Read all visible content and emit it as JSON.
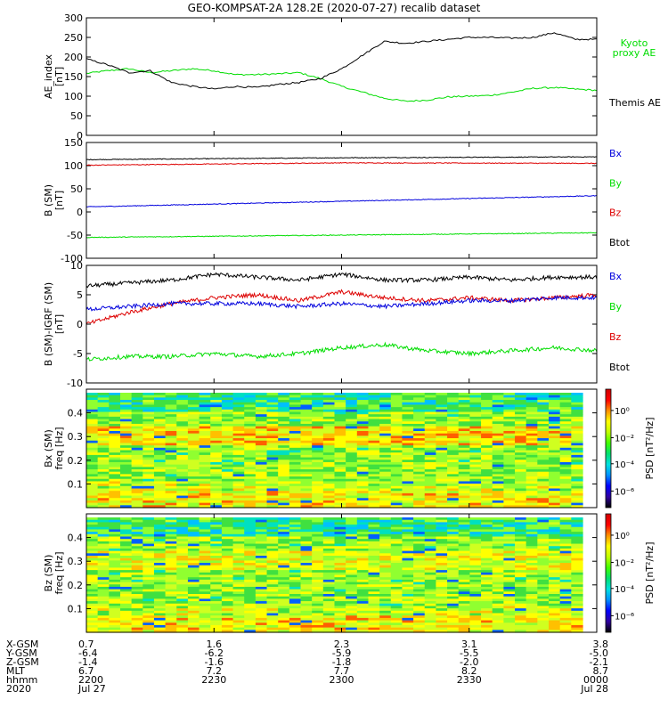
{
  "chart_data": {
    "title": "GEO-KOMPSAT-2A 128.2E (2020-07-27) recalib dataset",
    "x_axis": {
      "row_labels": [
        "X-GSM",
        "Y-GSM",
        "Z-GSM",
        "MLT",
        "hhmm",
        "2020"
      ],
      "tick_positions": [
        0,
        30,
        60,
        90,
        120
      ],
      "ticks": [
        {
          "values": [
            "0.7",
            "-6.4",
            "-1.4",
            "6.7",
            "2200",
            "Jul 27"
          ]
        },
        {
          "values": [
            "1.6",
            "-6.2",
            "-1.6",
            "7.2",
            "2230",
            ""
          ]
        },
        {
          "values": [
            "2.3",
            "-5.9",
            "-1.8",
            "7.7",
            "2300",
            ""
          ]
        },
        {
          "values": [
            "3.1",
            "-5.5",
            "-2.0",
            "8.2",
            "2330",
            ""
          ]
        },
        {
          "values": [
            "3.8",
            "-5.0",
            "-2.1",
            "8.7",
            "0000",
            "Jul 28"
          ]
        }
      ]
    },
    "panels": [
      {
        "type": "line",
        "ylabel": [
          "AE_index",
          "[nT]"
        ],
        "ylim": [
          0,
          300
        ],
        "yticks": [
          0,
          50,
          100,
          150,
          200,
          250,
          300
        ],
        "series": [
          {
            "name": "Kyoto\nproxy AE",
            "color": "#00dd00",
            "x": [
              0,
              5,
              10,
              15,
              20,
              25,
              30,
              35,
              40,
              45,
              50,
              55,
              60,
              65,
              70,
              75,
              80,
              85,
              90,
              95,
              100,
              105,
              110,
              115,
              120
            ],
            "y": [
              158,
              165,
              170,
              160,
              165,
              170,
              165,
              155,
              155,
              157,
              160,
              145,
              125,
              110,
              95,
              87,
              90,
              98,
              100,
              102,
              110,
              120,
              122,
              118,
              115
            ]
          },
          {
            "name": "Themis AE",
            "color": "#000000",
            "x": [
              0,
              5,
              10,
              15,
              20,
              25,
              30,
              35,
              40,
              45,
              50,
              55,
              60,
              65,
              70,
              75,
              80,
              85,
              90,
              95,
              100,
              105,
              110,
              115,
              120
            ],
            "y": [
              195,
              180,
              160,
              165,
              135,
              125,
              118,
              125,
              122,
              130,
              135,
              145,
              170,
              205,
              240,
              235,
              240,
              245,
              250,
              250,
              248,
              250,
              262,
              245,
              245
            ]
          }
        ]
      },
      {
        "type": "line",
        "ylabel": [
          "B (SM)",
          "[nT]"
        ],
        "ylim": [
          -100,
          150
        ],
        "yticks": [
          -100,
          -50,
          0,
          50,
          100,
          150
        ],
        "legend": [
          "Bx",
          "By",
          "Bz",
          "Btot"
        ],
        "series": [
          {
            "name": "Btot",
            "color": "#000000",
            "x": [
              0,
              60,
              120
            ],
            "y": [
              113,
              117,
              119
            ]
          },
          {
            "name": "Bz",
            "color": "#dd0000",
            "x": [
              0,
              60,
              120
            ],
            "y": [
              101,
              106,
              105
            ]
          },
          {
            "name": "Bx",
            "color": "#0000dd",
            "x": [
              0,
              60,
              120
            ],
            "y": [
              11,
              23,
              35
            ]
          },
          {
            "name": "By",
            "color": "#00dd00",
            "x": [
              0,
              60,
              120
            ],
            "y": [
              -55,
              -50,
              -45
            ]
          }
        ]
      },
      {
        "type": "line",
        "ylabel": [
          "B (SM)-IGRF (SM)",
          "[nT]"
        ],
        "ylim": [
          -10,
          10
        ],
        "yticks": [
          -10,
          -5,
          0,
          5,
          10
        ],
        "legend": [
          "Bx",
          "By",
          "Bz",
          "Btot"
        ],
        "series": [
          {
            "name": "Btot",
            "color": "#000000",
            "x": [
              0,
              10,
              20,
              30,
              40,
              50,
              60,
              70,
              80,
              90,
              100,
              110,
              120
            ],
            "y": [
              6.5,
              7.0,
              7.5,
              8.5,
              8.0,
              7.5,
              8.5,
              7.5,
              7.5,
              8.0,
              7.5,
              8.0,
              8.0
            ]
          },
          {
            "name": "Bz",
            "color": "#dd0000",
            "x": [
              0,
              10,
              20,
              30,
              40,
              50,
              60,
              70,
              80,
              90,
              100,
              110,
              120
            ],
            "y": [
              0,
              2.0,
              3.5,
              4.5,
              5.0,
              4.0,
              5.5,
              4.5,
              4.0,
              4.5,
              4.0,
              4.5,
              5.0
            ]
          },
          {
            "name": "Bx",
            "color": "#0000dd",
            "x": [
              0,
              10,
              20,
              30,
              40,
              50,
              60,
              70,
              80,
              90,
              100,
              110,
              120
            ],
            "y": [
              2.5,
              3.0,
              3.5,
              3.5,
              3.5,
              3.0,
              3.5,
              3.0,
              3.5,
              4.0,
              4.0,
              4.5,
              4.5
            ]
          },
          {
            "name": "By",
            "color": "#00dd00",
            "x": [
              0,
              10,
              20,
              30,
              40,
              50,
              60,
              70,
              80,
              90,
              100,
              110,
              120
            ],
            "y": [
              -6.0,
              -5.5,
              -5.5,
              -5.0,
              -5.5,
              -5.0,
              -4.0,
              -3.5,
              -4.5,
              -5.0,
              -4.5,
              -4.0,
              -4.5
            ]
          }
        ]
      },
      {
        "type": "heatmap",
        "ylabel": [
          "Bx (SM)",
          "freq [Hz]"
        ],
        "ylim": [
          0,
          0.5
        ],
        "yticks": [
          0.1,
          0.2,
          0.3,
          0.4
        ],
        "colorbar_label": "PSD [nT²/Hz]",
        "colorbar_ticks": [
          "10⁰",
          "10⁻²",
          "10⁻⁴",
          "10⁻⁶"
        ]
      },
      {
        "type": "heatmap",
        "ylabel": [
          "Bz (SM)",
          "freq [Hz]"
        ],
        "ylim": [
          0,
          0.5
        ],
        "yticks": [
          0.1,
          0.2,
          0.3,
          0.4
        ],
        "colorbar_label": "PSD [nT²/Hz]",
        "colorbar_ticks": [
          "10⁰",
          "10⁻²",
          "10⁻⁴",
          "10⁻⁶"
        ]
      }
    ]
  }
}
